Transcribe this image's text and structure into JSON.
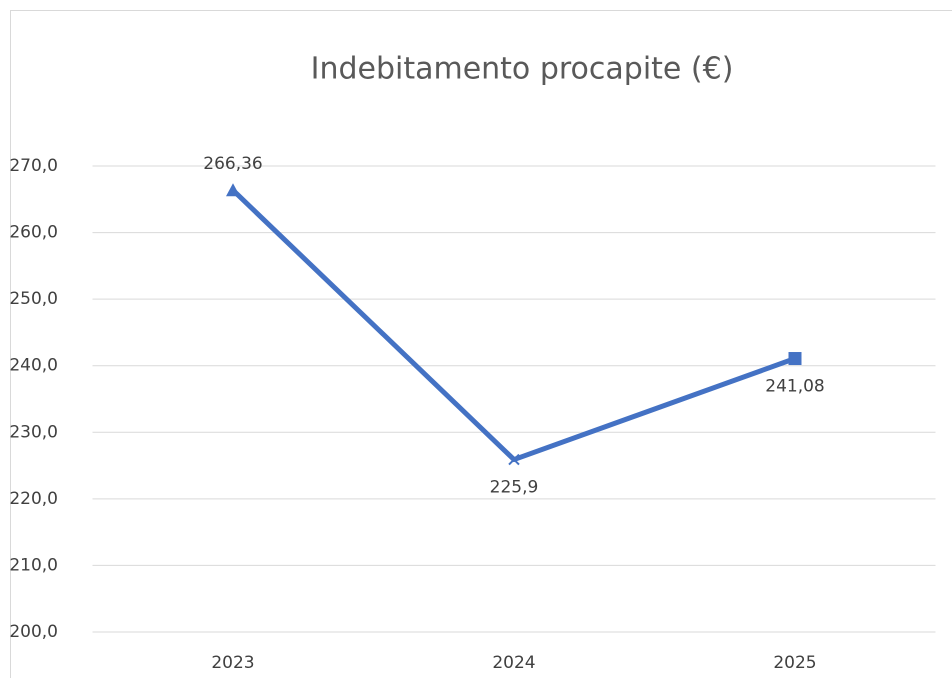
{
  "chart_data": {
    "type": "line",
    "title": "Indebitamento procapite (€)",
    "categories": [
      "2023",
      "2024",
      "2025"
    ],
    "series": [
      {
        "name": "Indebitamento procapite (€)",
        "color": "#4472c4",
        "values": [
          266.36,
          225.9,
          241.08
        ],
        "value_labels": [
          "266,36",
          "225,9",
          "241,08"
        ],
        "markers": [
          "triangle",
          "x",
          "square"
        ]
      }
    ],
    "ylim": [
      200,
      270
    ],
    "yticks": [
      {
        "value": 200,
        "label": "200,0"
      },
      {
        "value": 210,
        "label": "210,0"
      },
      {
        "value": 220,
        "label": "220,0"
      },
      {
        "value": 230,
        "label": "230,0"
      },
      {
        "value": 240,
        "label": "240,0"
      },
      {
        "value": 250,
        "label": "250,0"
      },
      {
        "value": 260,
        "label": "260,0"
      },
      {
        "value": 270,
        "label": "270,0"
      }
    ],
    "grid": true
  }
}
